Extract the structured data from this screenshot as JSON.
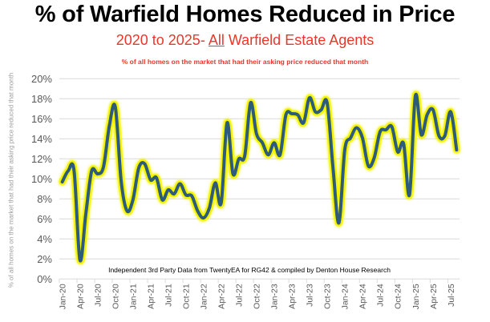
{
  "chart_data": {
    "type": "line",
    "title": "% of Warfield Homes Reduced in Price",
    "subtitle_prefix": "2020 to 2025- ",
    "subtitle_underlined": "All",
    "subtitle_suffix": " Warfield Estate Agents",
    "subtitle_full": "2020 to 2025- All Warfield Estate Agents",
    "note": "% of all homes on the market that had their asking price reduced that month",
    "ylabel": "% of all homes on the market that had their asking price reduced that month",
    "xlabel": "",
    "annotation": "Independent 3rd Party Data from TwentyEA for RG42 & compiled by Denton House Research",
    "ylim": [
      0,
      20
    ],
    "yticks": [
      0,
      2,
      4,
      6,
      8,
      10,
      12,
      14,
      16,
      18,
      20
    ],
    "ytick_labels": [
      "0%",
      "2%",
      "4%",
      "6%",
      "8%",
      "10%",
      "12%",
      "14%",
      "16%",
      "18%",
      "20%"
    ],
    "grid": true,
    "legend": "none",
    "xtick_labels": [
      "Jan-20",
      "Apr-20",
      "Jul-20",
      "Oct-20",
      "Jan-21",
      "Apr-21",
      "Jul-21",
      "Oct-21",
      "Jan-22",
      "Apr-22",
      "Jul-22",
      "Oct-22",
      "Jan-23",
      "Apr-23",
      "Jul-23",
      "Oct-23",
      "Jan-24",
      "Apr-24",
      "Jul-24",
      "Oct-24",
      "Jan-25",
      "Apr-25",
      "Jul-25"
    ],
    "x": [
      "Jan-20",
      "Feb-20",
      "Mar-20",
      "Apr-20",
      "May-20",
      "Jun-20",
      "Jul-20",
      "Aug-20",
      "Sep-20",
      "Oct-20",
      "Nov-20",
      "Dec-20",
      "Jan-21",
      "Feb-21",
      "Mar-21",
      "Apr-21",
      "May-21",
      "Jun-21",
      "Jul-21",
      "Aug-21",
      "Sep-21",
      "Oct-21",
      "Nov-21",
      "Dec-21",
      "Jan-22",
      "Feb-22",
      "Mar-22",
      "Apr-22",
      "May-22",
      "Jun-22",
      "Jul-22",
      "Aug-22",
      "Sep-22",
      "Oct-22",
      "Nov-22",
      "Dec-22",
      "Jan-23",
      "Feb-23",
      "Mar-23",
      "Apr-23",
      "May-23",
      "Jun-23",
      "Jul-23",
      "Aug-23",
      "Sep-23",
      "Oct-23",
      "Nov-23",
      "Dec-23",
      "Jan-24",
      "Feb-24",
      "Mar-24",
      "Apr-24",
      "May-24",
      "Jun-24",
      "Jul-24",
      "Aug-24",
      "Sep-24",
      "Oct-24",
      "Nov-24",
      "Dec-24",
      "Jan-25",
      "Feb-25",
      "Mar-25",
      "Apr-25",
      "May-25",
      "Jun-25",
      "Jul-25",
      "Aug-25"
    ],
    "series": [
      {
        "name": "% of homes reduced in price",
        "color": "#2d5b7a",
        "glow_color": "#f4f400",
        "values": [
          9.7,
          10.8,
          10.8,
          1.9,
          6.5,
          10.8,
          10.5,
          11.2,
          15.3,
          17.2,
          9.8,
          6.8,
          7.9,
          11.1,
          11.5,
          9.9,
          10.1,
          7.9,
          8.9,
          8.5,
          9.5,
          8.4,
          8.3,
          6.8,
          6.1,
          7.1,
          9.6,
          7.6,
          15.6,
          10.5,
          12.0,
          12.3,
          17.6,
          14.5,
          13.6,
          12.4,
          13.6,
          12.4,
          16.4,
          16.5,
          16.4,
          15.6,
          18.1,
          16.7,
          16.9,
          17.6,
          11.1,
          5.6,
          12.9,
          14.1,
          15.1,
          14.1,
          11.3,
          12.1,
          14.7,
          14.9,
          15.2,
          12.7,
          13.5,
          8.4,
          18.3,
          14.4,
          16.4,
          16.9,
          14.3,
          14.3,
          16.7,
          12.9
        ]
      }
    ]
  }
}
